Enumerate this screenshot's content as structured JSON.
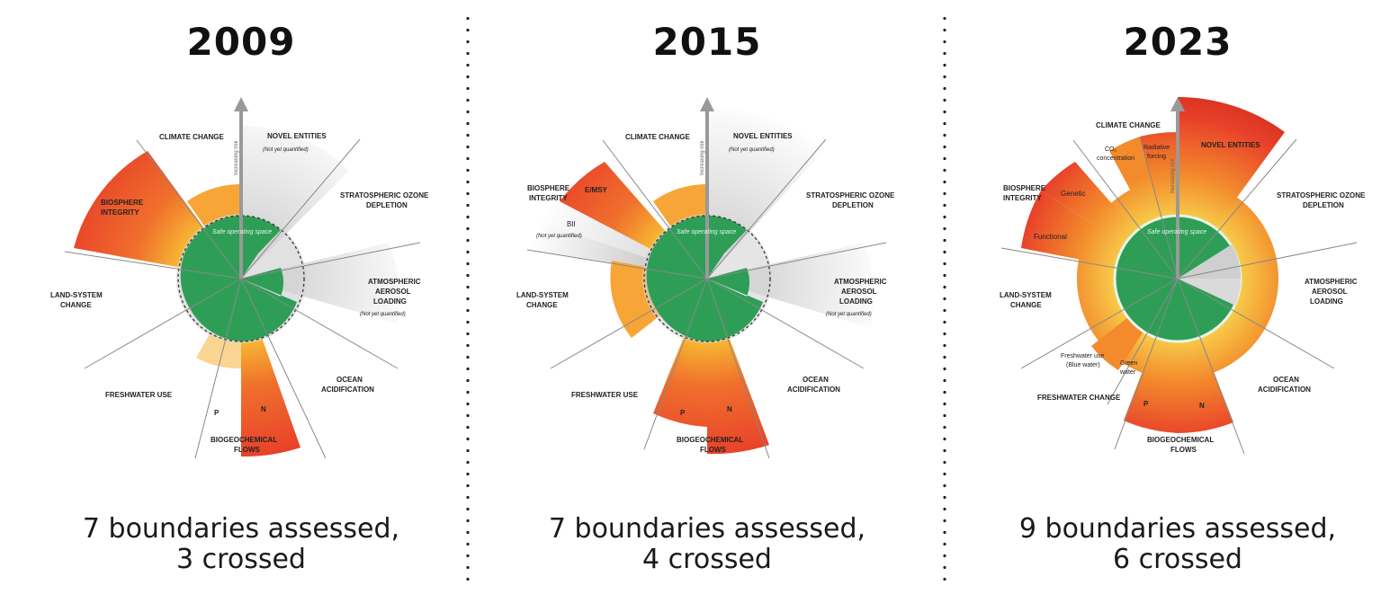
{
  "panels": [
    {
      "year": "2009",
      "summary_line1": "7 boundaries assessed,",
      "summary_line2": "3 crossed",
      "labels": {
        "climate": "CLIMATE CHANGE",
        "novel": "NOVEL ENTITIES",
        "novel_note": "(Not yet quantified)",
        "ozone1": "STRATOSPHERIC OZONE",
        "ozone2": "DEPLETION",
        "aerosol1": "ATMOSPHERIC",
        "aerosol2": "AEROSOL",
        "aerosol3": "LOADING",
        "aerosol_note": "(Not yet quantified)",
        "ocean1": "OCEAN",
        "ocean2": "ACIDIFICATION",
        "bio1": "BIOGEOCHEMICAL",
        "bio2": "FLOWS",
        "p": "P",
        "n": "N",
        "fresh": "FRESHWATER USE",
        "land1": "LAND-SYSTEM",
        "land2": "CHANGE",
        "biosphere1": "BIOSPHERE",
        "biosphere2": "INTEGRITY",
        "arrow": "Increasing risk",
        "safe": "Safe operating space"
      }
    },
    {
      "year": "2015",
      "summary_line1": "7 boundaries assessed,",
      "summary_line2": "4 crossed",
      "labels": {
        "climate": "CLIMATE CHANGE",
        "novel": "NOVEL ENTITIES",
        "novel_note": "(Not yet quantified)",
        "ozone1": "STRATOSPHERIC OZONE",
        "ozone2": "DEPLETION",
        "aerosol1": "ATMOSPHERIC",
        "aerosol2": "AEROSOL",
        "aerosol3": "LOADING",
        "aerosol_note": "(Not yet quantified)",
        "ocean1": "OCEAN",
        "ocean2": "ACIDIFICATION",
        "bio1": "BIOGEOCHEMICAL",
        "bio2": "FLOWS",
        "p": "P",
        "n": "N",
        "fresh": "FRESHWATER USE",
        "land1": "LAND-SYSTEM",
        "land2": "CHANGE",
        "biosphere1": "BIOSPHERE",
        "biosphere2": "INTEGRITY",
        "emsy": "E/MSY",
        "bii": "BII",
        "bii_note": "(Not yet quantified)",
        "arrow": "Increasing risk",
        "safe": "Safe operating space"
      }
    },
    {
      "year": "2023",
      "summary_line1": "9 boundaries assessed,",
      "summary_line2": "6 crossed",
      "labels": {
        "climate": "CLIMATE CHANGE",
        "co2_1": "CO₂",
        "co2_2": "concentration",
        "rad1": "Radiative",
        "rad2": "forcing",
        "novel": "NOVEL ENTITIES",
        "ozone1": "STRATOSPHERIC OZONE",
        "ozone2": "DEPLETION",
        "aerosol1": "ATMOSPHERIC",
        "aerosol2": "AEROSOL",
        "aerosol3": "LOADING",
        "ocean1": "OCEAN",
        "ocean2": "ACIDIFICATION",
        "bio1": "BIOGEOCHEMICAL",
        "bio2": "FLOWS",
        "p": "P",
        "n": "N",
        "fresh": "FRESHWATER CHANGE",
        "blue1": "Freshwater use",
        "blue2": "(Blue water)",
        "green1": "Green",
        "green2": "water",
        "land1": "LAND-SYSTEM",
        "land2": "CHANGE",
        "biosphere1": "BIOSPHERE",
        "biosphere2": "INTEGRITY",
        "genetic": "Genetic",
        "functional": "Functional",
        "arrow": "Increasing risk",
        "safe": "Safe operating space"
      }
    }
  ],
  "colors": {
    "safe_green": "#2e9e57",
    "crossed_red": "#e8412a",
    "crossed_orange": "#f59a2c",
    "zone_yellow": "#f7c948",
    "not_quantified_grey": "#d9d9d9"
  }
}
